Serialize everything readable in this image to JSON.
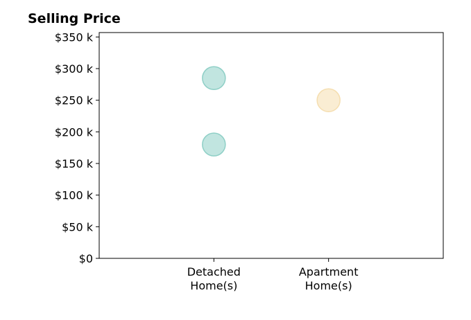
{
  "chart_data": {
    "type": "scatter",
    "title": "Selling Price",
    "xlabel": "",
    "ylabel": "",
    "categories": [
      {
        "lines": [
          "Detached",
          "Home(s)"
        ]
      },
      {
        "lines": [
          "Apartment",
          "Home(s)"
        ]
      }
    ],
    "points": [
      {
        "category": 0,
        "value": 285000,
        "color": "#8ecfc6"
      },
      {
        "category": 0,
        "value": 180000,
        "color": "#8ecfc6"
      },
      {
        "category": 1,
        "value": 250000,
        "color": "#f5deaf"
      }
    ],
    "y_ticks": [
      {
        "value": 0,
        "label": "$0"
      },
      {
        "value": 50000,
        "label": "$50 k"
      },
      {
        "value": 100000,
        "label": "$100 k"
      },
      {
        "value": 150000,
        "label": "$150 k"
      },
      {
        "value": 200000,
        "label": "$200 k"
      },
      {
        "value": 250000,
        "label": "$250 k"
      },
      {
        "value": 300000,
        "label": "$300 k"
      },
      {
        "value": 350000,
        "label": "$350 k"
      }
    ],
    "ylim": [
      0,
      357000
    ],
    "xlim": [
      -1,
      2
    ],
    "grid": false,
    "legend": "none"
  }
}
